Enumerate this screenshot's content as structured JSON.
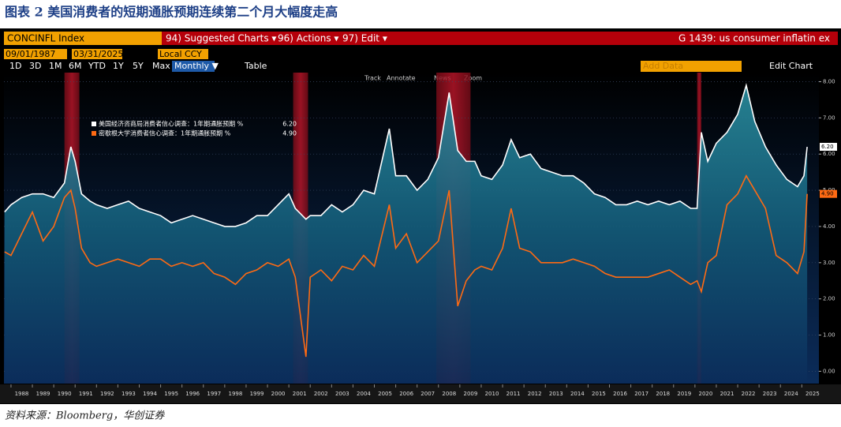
{
  "header": {
    "title": "图表 2 美国消费者的短期通胀预期连续第二个月大幅度走高",
    "source": "资料来源：Bloomberg，华创证券"
  },
  "ui": {
    "ticker": "CONCINFL Index",
    "menu": [
      "94) Suggested Charts ▾",
      "96) Actions ▾",
      "97) Edit ▾"
    ],
    "chart_id": "G 1439: us consumer inflatin ex",
    "start_date": "09/01/1987",
    "end_date": "03/31/2025",
    "currency": "Local CCY",
    "ranges": [
      "1D",
      "3D",
      "1M",
      "6M",
      "YTD",
      "1Y",
      "5Y",
      "Max"
    ],
    "frequency": "Monthly ▼",
    "table": "Table",
    "add_data": "Add Data",
    "edit_chart": "Edit Chart",
    "tools": [
      "Track",
      "Annotate",
      "News",
      "Zoom"
    ]
  },
  "chart_data": {
    "type": "line",
    "x": [
      1987.7,
      1988.0,
      1988.5,
      1989.0,
      1989.5,
      1990.0,
      1990.5,
      1990.8,
      1991.0,
      1991.3,
      1991.7,
      1992.0,
      1992.5,
      1993.0,
      1993.5,
      1994.0,
      1994.5,
      1995.0,
      1995.5,
      1996.0,
      1996.5,
      1997.0,
      1997.5,
      1998.0,
      1998.5,
      1999.0,
      1999.5,
      2000.0,
      2000.5,
      2001.0,
      2001.3,
      2001.8,
      2002.0,
      2002.5,
      2003.0,
      2003.5,
      2004.0,
      2004.5,
      2005.0,
      2005.7,
      2006.0,
      2006.5,
      2007.0,
      2007.5,
      2008.0,
      2008.5,
      2008.9,
      2009.3,
      2009.7,
      2010.0,
      2010.5,
      2011.0,
      2011.4,
      2011.8,
      2012.3,
      2012.8,
      2013.3,
      2013.8,
      2014.3,
      2014.8,
      2015.3,
      2015.8,
      2016.3,
      2016.8,
      2017.3,
      2017.8,
      2018.3,
      2018.8,
      2019.3,
      2019.8,
      2020.1,
      2020.3,
      2020.6,
      2021.0,
      2021.5,
      2022.0,
      2022.4,
      2022.8,
      2023.3,
      2023.8,
      2024.3,
      2024.8,
      2025.1,
      2025.25
    ],
    "series": [
      {
        "name": "美国经济咨商局消费者信心调查：1年期通胀预期 %",
        "color": "#ffffff",
        "last_value_label": "6.20",
        "values": [
          4.4,
          4.6,
          4.8,
          4.9,
          4.9,
          4.8,
          5.2,
          6.2,
          5.8,
          4.9,
          4.7,
          4.6,
          4.5,
          4.6,
          4.7,
          4.5,
          4.4,
          4.3,
          4.1,
          4.2,
          4.3,
          4.2,
          4.1,
          4.0,
          4.0,
          4.1,
          4.3,
          4.3,
          4.6,
          4.9,
          4.5,
          4.2,
          4.3,
          4.3,
          4.6,
          4.4,
          4.6,
          5.0,
          4.9,
          6.7,
          5.4,
          5.4,
          5.0,
          5.3,
          5.9,
          7.7,
          6.1,
          5.8,
          5.8,
          5.4,
          5.3,
          5.7,
          6.4,
          5.9,
          6.0,
          5.6,
          5.5,
          5.4,
          5.4,
          5.2,
          4.9,
          4.8,
          4.6,
          4.6,
          4.7,
          4.6,
          4.7,
          4.6,
          4.7,
          4.5,
          4.5,
          6.6,
          5.8,
          6.3,
          6.6,
          7.1,
          7.9,
          6.9,
          6.2,
          5.7,
          5.3,
          5.1,
          5.4,
          6.2
        ]
      },
      {
        "name": "密歇根大学消费者信心调查：1年期通胀预期 %",
        "color": "#ff6a13",
        "last_value_label": "4.90",
        "values": [
          3.3,
          3.2,
          3.8,
          4.4,
          3.6,
          4.0,
          4.8,
          5.0,
          4.5,
          3.4,
          3.0,
          2.9,
          3.0,
          3.1,
          3.0,
          2.9,
          3.1,
          3.1,
          2.9,
          3.0,
          2.9,
          3.0,
          2.7,
          2.6,
          2.4,
          2.7,
          2.8,
          3.0,
          2.9,
          3.1,
          2.6,
          0.4,
          2.6,
          2.8,
          2.5,
          2.9,
          2.8,
          3.2,
          2.9,
          4.6,
          3.4,
          3.8,
          3.0,
          3.3,
          3.6,
          5.0,
          1.8,
          2.5,
          2.8,
          2.9,
          2.8,
          3.4,
          4.5,
          3.4,
          3.3,
          3.0,
          3.0,
          3.0,
          3.1,
          3.0,
          2.9,
          2.7,
          2.6,
          2.6,
          2.6,
          2.6,
          2.7,
          2.8,
          2.6,
          2.4,
          2.5,
          2.2,
          3.0,
          3.2,
          4.6,
          4.9,
          5.4,
          5.0,
          4.5,
          3.2,
          3.0,
          2.7,
          3.3,
          4.9
        ]
      }
    ],
    "recessions": [
      [
        1990.5,
        1991.2
      ],
      [
        2001.2,
        2001.9
      ],
      [
        2007.9,
        2009.5
      ],
      [
        2020.1,
        2020.3
      ]
    ],
    "xlim": [
      1987.67,
      2025.8
    ],
    "xticks": [
      {
        "value": 1988.5,
        "label": "1988"
      },
      {
        "value": 1989.5,
        "label": "1989"
      },
      {
        "value": 1990.5,
        "label": "1990"
      },
      {
        "value": 1991.5,
        "label": "1991"
      },
      {
        "value": 1992.5,
        "label": "1992"
      },
      {
        "value": 1993.5,
        "label": "1993"
      },
      {
        "value": 1994.5,
        "label": "1994"
      },
      {
        "value": 1995.5,
        "label": "1995"
      },
      {
        "value": 1996.5,
        "label": "1996"
      },
      {
        "value": 1997.5,
        "label": "1997"
      },
      {
        "value": 1998.5,
        "label": "1998"
      },
      {
        "value": 1999.5,
        "label": "1999"
      },
      {
        "value": 2000.5,
        "label": "2000"
      },
      {
        "value": 2001.5,
        "label": "2001"
      },
      {
        "value": 2002.5,
        "label": "2002"
      },
      {
        "value": 2003.5,
        "label": "2003"
      },
      {
        "value": 2004.5,
        "label": "2004"
      },
      {
        "value": 2005.5,
        "label": "2005"
      },
      {
        "value": 2006.5,
        "label": "2006"
      },
      {
        "value": 2007.5,
        "label": "2007"
      },
      {
        "value": 2008.5,
        "label": "2008"
      },
      {
        "value": 2009.5,
        "label": "2009"
      },
      {
        "value": 2010.5,
        "label": "2010"
      },
      {
        "value": 2011.5,
        "label": "2011"
      },
      {
        "value": 2012.5,
        "label": "2012"
      },
      {
        "value": 2013.5,
        "label": "2013"
      },
      {
        "value": 2014.5,
        "label": "2014"
      },
      {
        "value": 2015.5,
        "label": "2015"
      },
      {
        "value": 2016.5,
        "label": "2016"
      },
      {
        "value": 2017.5,
        "label": "2017"
      },
      {
        "value": 2018.5,
        "label": "2018"
      },
      {
        "value": 2019.5,
        "label": "2019"
      },
      {
        "value": 2020.5,
        "label": "2020"
      },
      {
        "value": 2021.5,
        "label": "2021"
      },
      {
        "value": 2022.5,
        "label": "2022"
      },
      {
        "value": 2023.5,
        "label": "2023"
      },
      {
        "value": 2024.5,
        "label": "2024"
      },
      {
        "value": 2025.5,
        "label": "2025"
      }
    ],
    "ylim": [
      -0.34,
      8.25
    ],
    "yticks": [
      {
        "value": 0,
        "label": "0.00"
      },
      {
        "value": 1,
        "label": "1.00"
      },
      {
        "value": 2,
        "label": "2.00"
      },
      {
        "value": 3,
        "label": "3.00"
      },
      {
        "value": 4,
        "label": "4.00"
      },
      {
        "value": 5,
        "label": "5.00"
      },
      {
        "value": 6,
        "label": "6.00"
      },
      {
        "value": 7,
        "label": "7.00"
      },
      {
        "value": 8,
        "label": "8.00"
      }
    ],
    "grid": true,
    "legend": "upper left"
  }
}
